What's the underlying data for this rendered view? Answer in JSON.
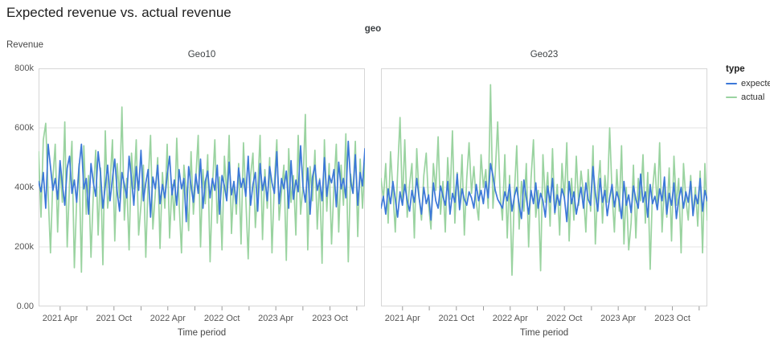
{
  "title": "Expected revenue vs. actual revenue",
  "facet_header": "geo",
  "y_axis_title": "Revenue",
  "x_axis_title": "Time period",
  "legend": {
    "title": "type",
    "items": [
      {
        "label": "expected",
        "color": "#3c78d8"
      },
      {
        "label": "actual",
        "color": "#9ad3a0"
      }
    ]
  },
  "chart_data": {
    "type": "line",
    "title": "Expected revenue vs. actual revenue",
    "facet_field": "geo",
    "xlabel": "Time period",
    "ylabel": "Revenue",
    "ylim_k": [
      0,
      800
    ],
    "grid": true,
    "legend_position": "right",
    "y_ticks": [
      {
        "value_k": 0,
        "label": "0.00"
      },
      {
        "value_k": 200,
        "label": "200k"
      },
      {
        "value_k": 400,
        "label": "400k"
      },
      {
        "value_k": 600,
        "label": "600k"
      },
      {
        "value_k": 800,
        "label": "800k"
      }
    ],
    "x_ticks": [
      {
        "pos": 0.066,
        "label": "2021 Apr"
      },
      {
        "pos": 0.148,
        "label": ""
      },
      {
        "pos": 0.231,
        "label": "2021 Oct"
      },
      {
        "pos": 0.314,
        "label": ""
      },
      {
        "pos": 0.396,
        "label": "2022 Apr"
      },
      {
        "pos": 0.479,
        "label": ""
      },
      {
        "pos": 0.562,
        "label": "2022 Oct"
      },
      {
        "pos": 0.645,
        "label": ""
      },
      {
        "pos": 0.727,
        "label": "2023 Apr"
      },
      {
        "pos": 0.81,
        "label": ""
      },
      {
        "pos": 0.893,
        "label": "2023 Oct"
      },
      {
        "pos": 0.975,
        "label": ""
      }
    ],
    "x_domain": "weekly, 2021 Jan – 2023 Dec",
    "facets": [
      {
        "title": "Geo10",
        "series": [
          {
            "name": "expected",
            "color": "#3c78d8",
            "values_k": [
              420,
              385,
              450,
              330,
              545,
              470,
              390,
              430,
              360,
              490,
              410,
              340,
              465,
              505,
              380,
              425,
              350,
              470,
              545,
              395,
              430,
              310,
              480,
              415,
              370,
              520,
              445,
              330,
              405,
              475,
              355,
              430,
              495,
              385,
              320,
              450,
              410,
              365,
              505,
              430,
              340,
              470,
              390,
              525,
              355,
              415,
              460,
              300,
              435,
              395,
              475,
              345,
              410,
              365,
              440,
              505,
              375,
              425,
              340,
              460,
              395,
              430,
              285,
              470,
              405,
              350,
              445,
              380,
              495,
              330,
              420,
              455,
              365,
              430,
              390,
              475,
              310,
              440,
              405,
              355,
              485,
              375,
              420,
              345,
              465,
              400,
              430,
              370,
              505,
              340,
              410,
              450,
              320,
              480,
              390,
              435,
              355,
              470,
              415,
              380,
              520,
              345,
              430,
              395,
              455,
              330,
              490,
              360,
              425,
              385,
              540,
              405,
              350,
              465,
              310,
              435,
              475,
              390,
              425,
              355,
              500,
              370,
              440,
              415,
              460,
              335,
              485,
              395,
              430,
              365,
              555,
              420,
              380,
              510,
              340,
              450,
              405,
              530
            ]
          },
          {
            "name": "actual",
            "color": "#9ad3a0",
            "values_k": [
              520,
              300,
              560,
              615,
              380,
              180,
              430,
              545,
              250,
              480,
              350,
              620,
              200,
              415,
              555,
              130,
              360,
              480,
              115,
              540,
              310,
              440,
              165,
              385,
              525,
              240,
              465,
              140,
              590,
              330,
              410,
              560,
              220,
              480,
              365,
              670,
              290,
              430,
              190,
              515,
              395,
              560,
              240,
              340,
              475,
              165,
              420,
              575,
              260,
              380,
              500,
              195,
              450,
              330,
              545,
              230,
              410,
              290,
              565,
              350,
              180,
              475,
              395,
              255,
              520,
              310,
              430,
              575,
              200,
              460,
              345,
              510,
              150,
              400,
              560,
              280,
              435,
              190,
              505,
              370,
              575,
              245,
              420,
              310,
              480,
              210,
              550,
              365,
              160,
              440,
              515,
              265,
              395,
              575,
              225,
              460,
              330,
              500,
              180,
              420,
              560,
              290,
              385,
              475,
              155,
              530,
              350,
              440,
              240,
              575,
              310,
              405,
              645,
              190,
              470,
              355,
              525,
              260,
              430,
              145,
              560,
              320,
              480,
              210,
              405,
              545,
              250,
              475,
              340,
              580,
              150,
              445,
              380,
              555,
              235,
              495,
              330,
              480
            ]
          }
        ]
      },
      {
        "title": "Geo23",
        "series": [
          {
            "name": "expected",
            "color": "#3c78d8",
            "values_k": [
              330,
              370,
              310,
              395,
              345,
              420,
              360,
              300,
              385,
              340,
              410,
              355,
              320,
              390,
              350,
              430,
              365,
              310,
              400,
              345,
              375,
              290,
              415,
              355,
              330,
              405,
              370,
              340,
              420,
              310,
              380,
              350,
              445,
              325,
              395,
              360,
              340,
              385,
              365,
              330,
              410,
              355,
              390,
              345,
              420,
              365,
              480,
              440,
              390,
              360,
              345,
              330,
              385,
              355,
              410,
              320,
              370,
              400,
              340,
              295,
              425,
              365,
              310,
              390,
              345,
              415,
              330,
              380,
              355,
              300,
              405,
              350,
              430,
              315,
              375,
              340,
              395,
              365,
              285,
              420,
              345,
              385,
              310,
              355,
              400,
              330,
              415,
              360,
              340,
              470,
              380,
              320,
              430,
              350,
              390,
              305,
              365,
              410,
              335,
              385,
              355,
              295,
              420,
              340,
              375,
              315,
              405,
              360,
              330,
              445,
              350,
              385,
              300,
              410,
              345,
              370,
              325,
              395,
              355,
              435,
              310,
              380,
              340,
              415,
              295,
              360,
              400,
              330,
              385,
              350,
              420,
              305,
              375,
              345,
              430,
              320,
              390,
              355
            ]
          },
          {
            "name": "actual",
            "color": "#9ad3a0",
            "values_k": [
              430,
              360,
              480,
              280,
              520,
              390,
              250,
              450,
              635,
              340,
              560,
              300,
              410,
              480,
              230,
              530,
              370,
              290,
              440,
              515,
              340,
              260,
              480,
              390,
              570,
              310,
              420,
              250,
              500,
              360,
              590,
              280,
              450,
              330,
              510,
              240,
              430,
              550,
              380,
              470,
              350,
              290,
              510,
              400,
              460,
              330,
              745,
              330,
              450,
              620,
              380,
              290,
              510,
              230,
              440,
              105,
              380,
              540,
              260,
              420,
              320,
              480,
              200,
              430,
              560,
              300,
              390,
              120,
              510,
              350,
              450,
              270,
              530,
              310,
              410,
              240,
              480,
              360,
              550,
              220,
              430,
              290,
              505,
              340,
              455,
              380,
              250,
              460,
              320,
              540,
              210,
              400,
              490,
              280,
              440,
              350,
              600,
              380,
              250,
              460,
              320,
              540,
              210,
              400,
              190,
              280,
              475,
              230,
              430,
              355,
              510,
              280,
              450,
              125,
              390,
              480,
              330,
              550,
              250,
              410,
              300,
              465,
              220,
              505,
              340,
              430,
              180,
              480,
              360,
              290,
              440,
              310,
              400,
              270,
              455,
              180,
              480,
              290
            ]
          }
        ]
      }
    ]
  }
}
